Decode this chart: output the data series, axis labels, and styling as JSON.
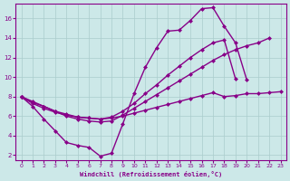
{
  "xlabel": "Windchill (Refroidissement éolien,°C)",
  "background_color": "#cce8e8",
  "line_color": "#880088",
  "grid_color": "#aacccc",
  "xlim": [
    -0.5,
    23.5
  ],
  "ylim": [
    1.5,
    17.5
  ],
  "xticks": [
    0,
    1,
    2,
    3,
    4,
    5,
    6,
    7,
    8,
    9,
    10,
    11,
    12,
    13,
    14,
    15,
    16,
    17,
    18,
    19,
    20,
    21,
    22,
    23
  ],
  "yticks": [
    2,
    4,
    6,
    8,
    10,
    12,
    14,
    16
  ],
  "line1_x": [
    0,
    1,
    2,
    3,
    4,
    5,
    6,
    7,
    8,
    9,
    10,
    11,
    12,
    13,
    14,
    15,
    16,
    17,
    18,
    19,
    20
  ],
  "line1_y": [
    8.0,
    7.0,
    5.7,
    4.5,
    3.3,
    3.0,
    2.8,
    1.9,
    2.2,
    5.2,
    8.3,
    11.0,
    13.0,
    14.7,
    14.8,
    15.8,
    17.0,
    17.1,
    15.2,
    13.5,
    9.7
  ],
  "line2_x": [
    0,
    1,
    2,
    3,
    4,
    5,
    6,
    7,
    8,
    9,
    10,
    11,
    12,
    13,
    14,
    15,
    16,
    17,
    18,
    19,
    20,
    21,
    22,
    23
  ],
  "line2_y": [
    8.0,
    7.3,
    6.8,
    6.4,
    6.1,
    5.9,
    5.8,
    5.7,
    5.8,
    6.0,
    6.3,
    6.6,
    6.9,
    7.2,
    7.5,
    7.8,
    8.1,
    8.4,
    8.0,
    8.1,
    8.3,
    8.3,
    8.4,
    8.5
  ],
  "line3_x": [
    0,
    1,
    2,
    3,
    4,
    5,
    6,
    7,
    8,
    9,
    10,
    11,
    12,
    13,
    14,
    15,
    16,
    17,
    18,
    19,
    20,
    21,
    22,
    23
  ],
  "line3_y": [
    8.0,
    7.5,
    7.0,
    6.5,
    6.0,
    5.7,
    5.5,
    5.4,
    5.5,
    6.1,
    6.8,
    7.5,
    8.2,
    8.9,
    9.6,
    10.3,
    11.0,
    11.7,
    12.3,
    12.8,
    13.2,
    13.5,
    14.0,
    null
  ],
  "line4_x": [
    0,
    1,
    2,
    3,
    4,
    5,
    6,
    7,
    8,
    9,
    10,
    11,
    12,
    13,
    14,
    15,
    16,
    17,
    18,
    19,
    20,
    21,
    22,
    23
  ],
  "line4_y": [
    8.0,
    7.4,
    7.0,
    6.5,
    6.2,
    5.9,
    5.8,
    5.7,
    5.9,
    6.5,
    7.3,
    8.3,
    9.2,
    10.2,
    11.1,
    12.0,
    12.8,
    13.5,
    13.8,
    9.8,
    null,
    null,
    null,
    null
  ]
}
